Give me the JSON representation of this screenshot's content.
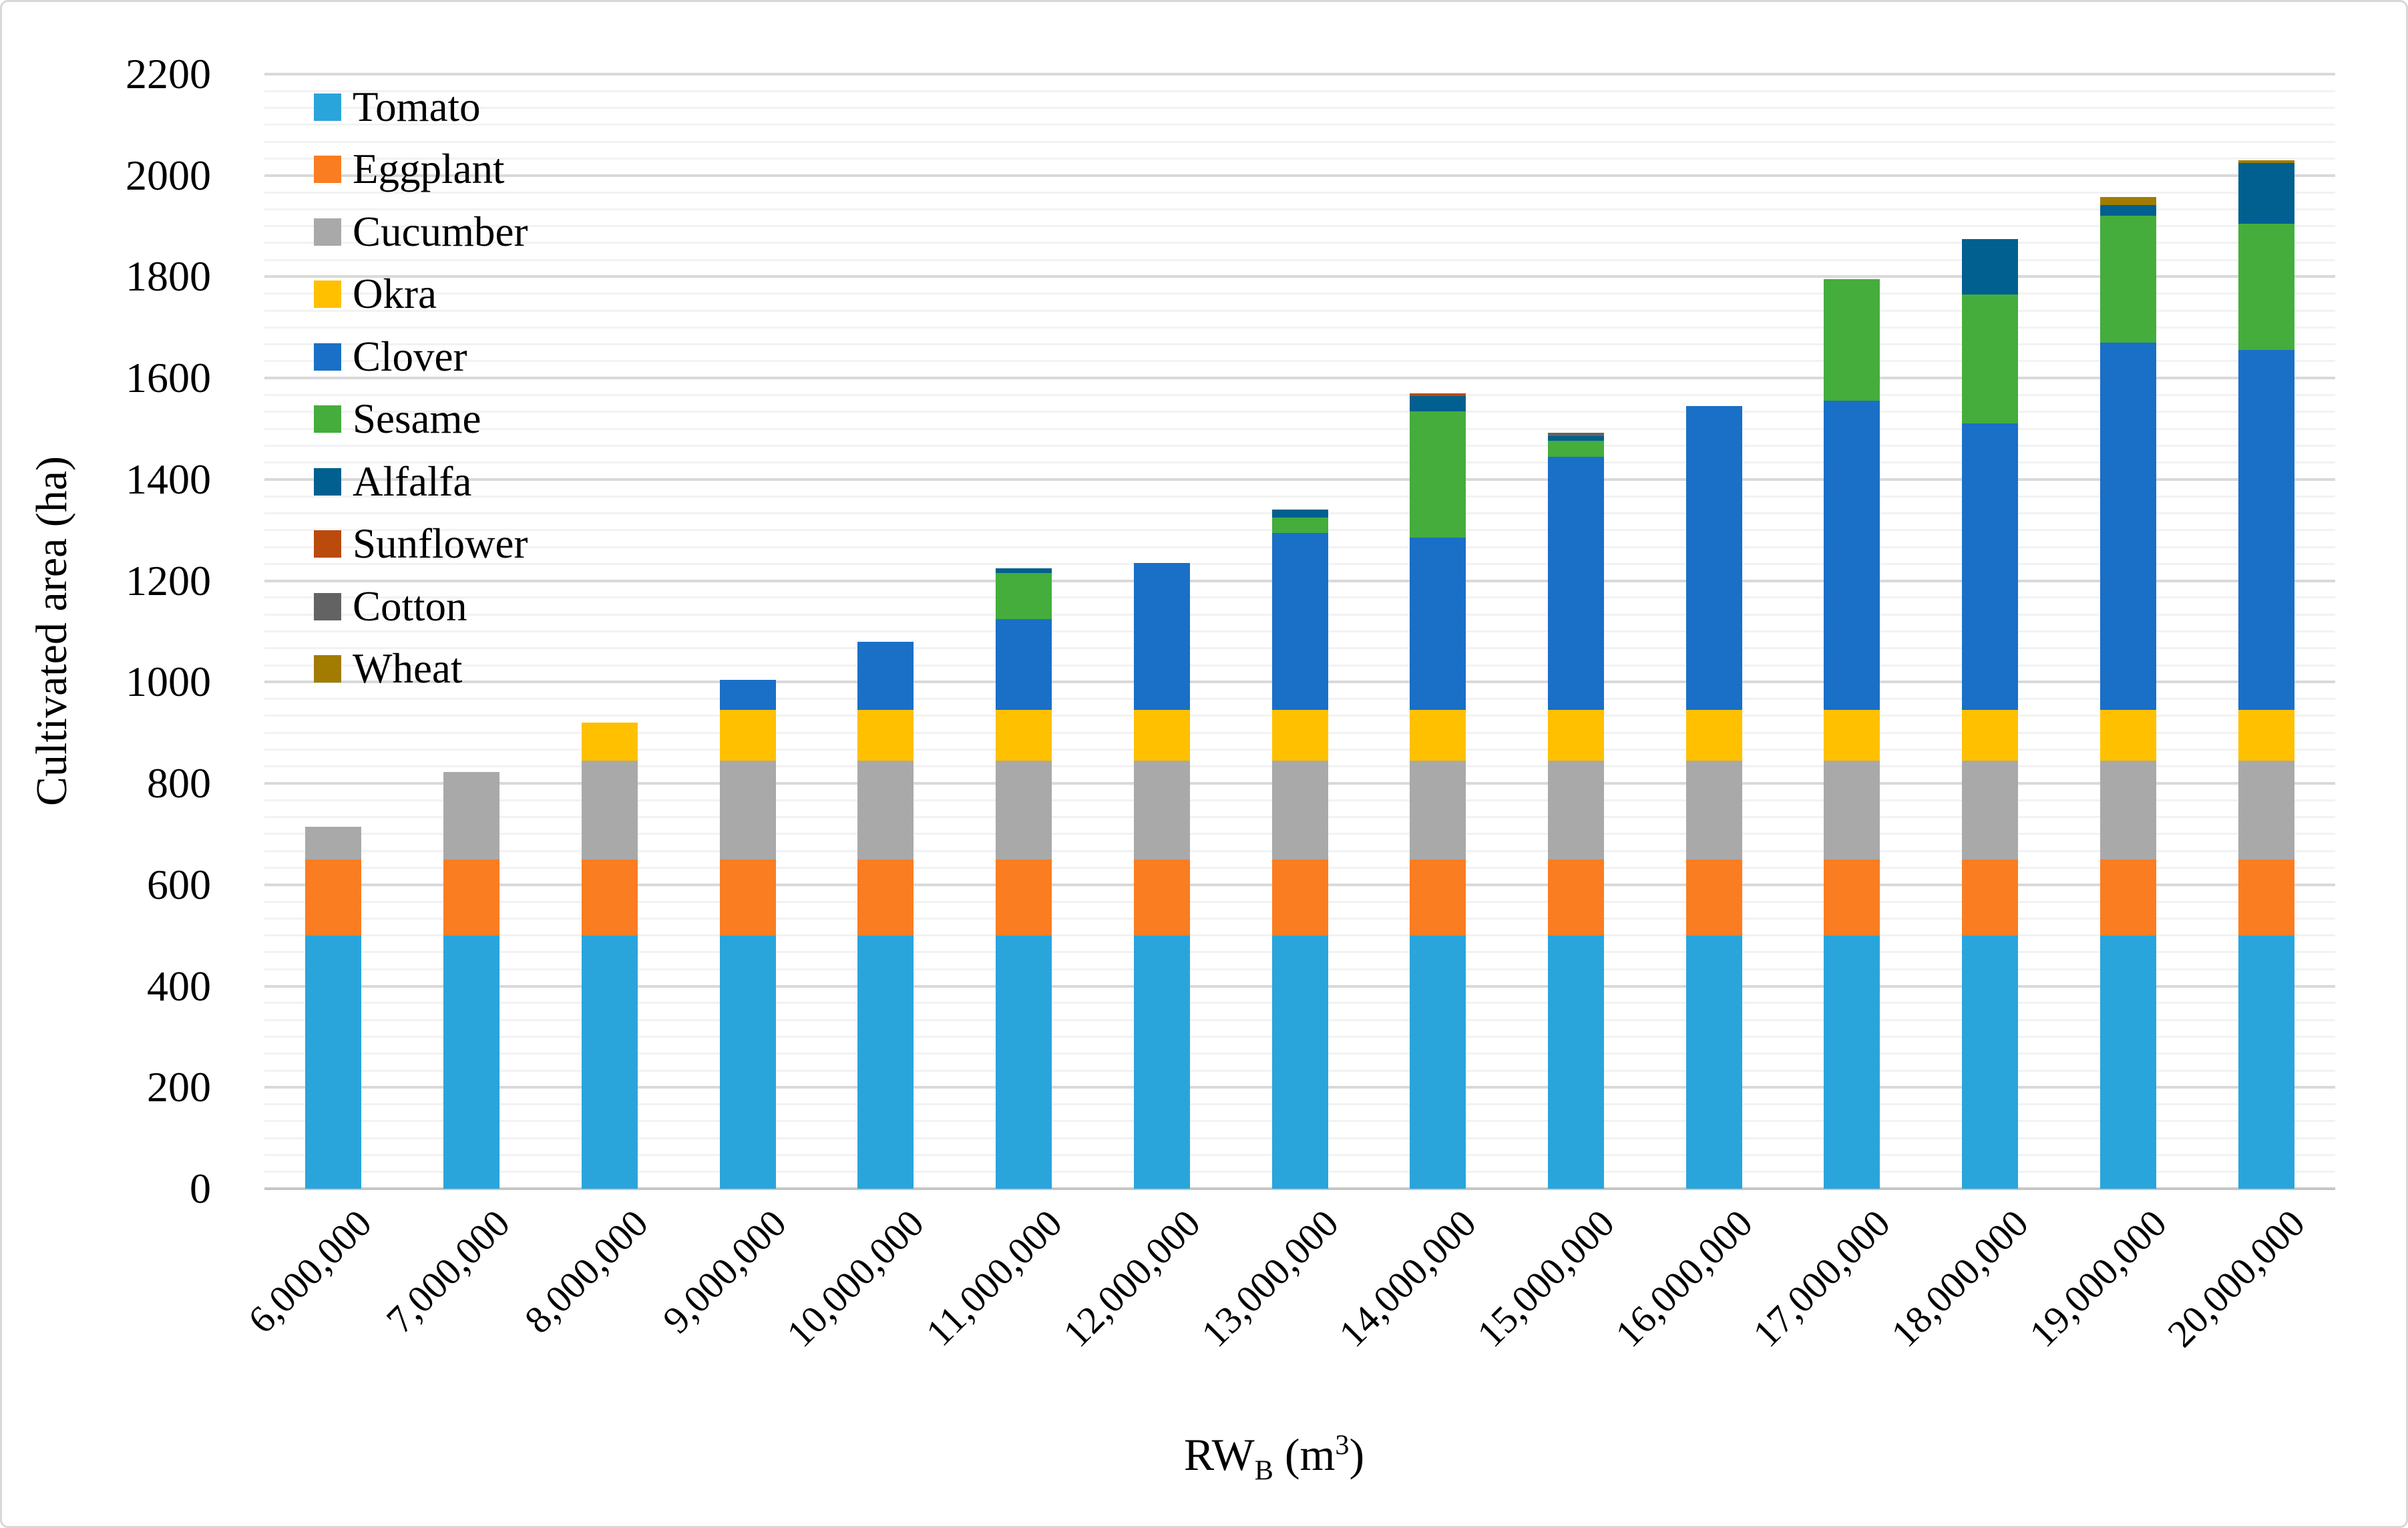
{
  "x_title": {
    "prefix": "RW",
    "sub": "B",
    "mid": " (m",
    "sup": "3",
    "suffix": ")"
  },
  "chart_data": {
    "type": "bar",
    "stacked": true,
    "title": "",
    "xlabel": "RW_B (m3)",
    "ylabel": "Cultivated area (ha)",
    "ylim": [
      0,
      2200
    ],
    "y_major_step": 200,
    "y_minor_step": 33.33,
    "grid": "horizontal major and minor gridlines",
    "legend_position": "inside-top-left",
    "y_tick_labels": [
      "0",
      "200",
      "400",
      "600",
      "800",
      "1000",
      "1200",
      "1400",
      "1600",
      "1800",
      "2000",
      "2200"
    ],
    "categories": [
      "6,000,000",
      "7,000,000",
      "8,000,000",
      "9,000,000",
      "10,000,000",
      "11,000,000",
      "12,000,000",
      "13,000,000",
      "14,000,000",
      "15,000,000",
      "16,000,000",
      "17,000,000",
      "18,000,000",
      "19,000,000",
      "20,000,000"
    ],
    "series": [
      {
        "name": "Tomato",
        "color": "#29A5DC",
        "values": [
          500,
          500,
          500,
          500,
          500,
          500,
          500,
          500,
          500,
          500,
          500,
          500,
          500,
          500,
          500
        ]
      },
      {
        "name": "Eggplant",
        "color": "#FA7D21",
        "values": [
          150,
          150,
          150,
          150,
          150,
          150,
          150,
          150,
          150,
          150,
          150,
          150,
          150,
          150,
          150
        ]
      },
      {
        "name": "Cucumber",
        "color": "#A9A9A9",
        "values": [
          65,
          172,
          195,
          195,
          195,
          195,
          195,
          195,
          195,
          195,
          195,
          195,
          195,
          195,
          195
        ]
      },
      {
        "name": "Okra",
        "color": "#FFC000",
        "values": [
          0,
          0,
          75,
          100,
          100,
          100,
          100,
          100,
          100,
          100,
          100,
          100,
          100,
          100,
          100
        ]
      },
      {
        "name": "Clover",
        "color": "#1A6FC7",
        "values": [
          0,
          0,
          0,
          60,
          135,
          180,
          290,
          350,
          340,
          500,
          600,
          610,
          565,
          725,
          710
        ]
      },
      {
        "name": "Sesame",
        "color": "#44AD3C",
        "values": [
          0,
          0,
          0,
          0,
          0,
          90,
          0,
          30,
          250,
          32,
          0,
          240,
          255,
          250,
          250
        ]
      },
      {
        "name": "Alfalfa",
        "color": "#01608F",
        "values": [
          0,
          0,
          0,
          0,
          0,
          10,
          0,
          15,
          30,
          9,
          0,
          0,
          110,
          22,
          120
        ]
      },
      {
        "name": "Sunflower",
        "color": "#BB4A0D",
        "values": [
          0,
          0,
          0,
          0,
          0,
          0,
          0,
          0,
          5,
          0,
          0,
          0,
          0,
          0,
          0
        ]
      },
      {
        "name": "Cotton",
        "color": "#636363",
        "values": [
          0,
          0,
          0,
          0,
          0,
          0,
          0,
          0,
          0,
          6,
          0,
          0,
          0,
          0,
          0
        ]
      },
      {
        "name": "Wheat",
        "color": "#A17C00",
        "values": [
          0,
          0,
          0,
          0,
          0,
          0,
          0,
          0,
          0,
          0,
          0,
          0,
          0,
          15,
          5
        ]
      }
    ],
    "totals": [
      715,
      822,
      920,
      1005,
      1080,
      1225,
      1235,
      1340,
      1570,
      1492,
      1545,
      1795,
      1875,
      1957,
      2030
    ]
  }
}
